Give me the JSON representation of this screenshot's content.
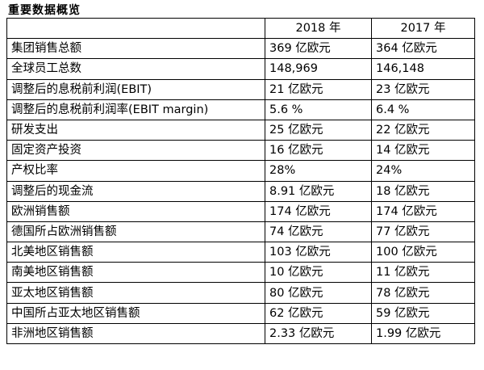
{
  "title": "重要数据概览",
  "table": {
    "headers": [
      "",
      "2018 年",
      "2017 年"
    ],
    "rows": [
      [
        "集团销售总额",
        "369 亿欧元",
        "364 亿欧元"
      ],
      [
        "全球员工总数",
        "148,969",
        "146,148"
      ],
      [
        "调整后的息税前利润(EBIT)",
        "21 亿欧元",
        "23 亿欧元"
      ],
      [
        "调整后的息税前利润率(EBIT margin)",
        "5.6 %",
        "6.4 %"
      ],
      [
        "研发支出",
        "25 亿欧元",
        "22 亿欧元"
      ],
      [
        "固定资产投资",
        "16 亿欧元",
        "14 亿欧元"
      ],
      [
        "产权比率",
        "28%",
        "24%"
      ],
      [
        "调整后的现金流",
        "8.91 亿欧元",
        "18 亿欧元"
      ],
      [
        "欧洲销售额",
        "174 亿欧元",
        "174 亿欧元"
      ],
      [
        "德国所占欧洲销售额",
        "74 亿欧元",
        "77 亿欧元"
      ],
      [
        "北美地区销售额",
        "103 亿欧元",
        "100 亿欧元"
      ],
      [
        "南美地区销售额",
        "10 亿欧元",
        "11 亿欧元"
      ],
      [
        "亚太地区销售额",
        "80 亿欧元",
        "78 亿欧元"
      ],
      [
        "中国所占亚太地区销售额",
        "62 亿欧元",
        "59 亿欧元"
      ],
      [
        "非洲地区销售额",
        "2.33 亿欧元",
        "1.99 亿欧元"
      ]
    ]
  }
}
